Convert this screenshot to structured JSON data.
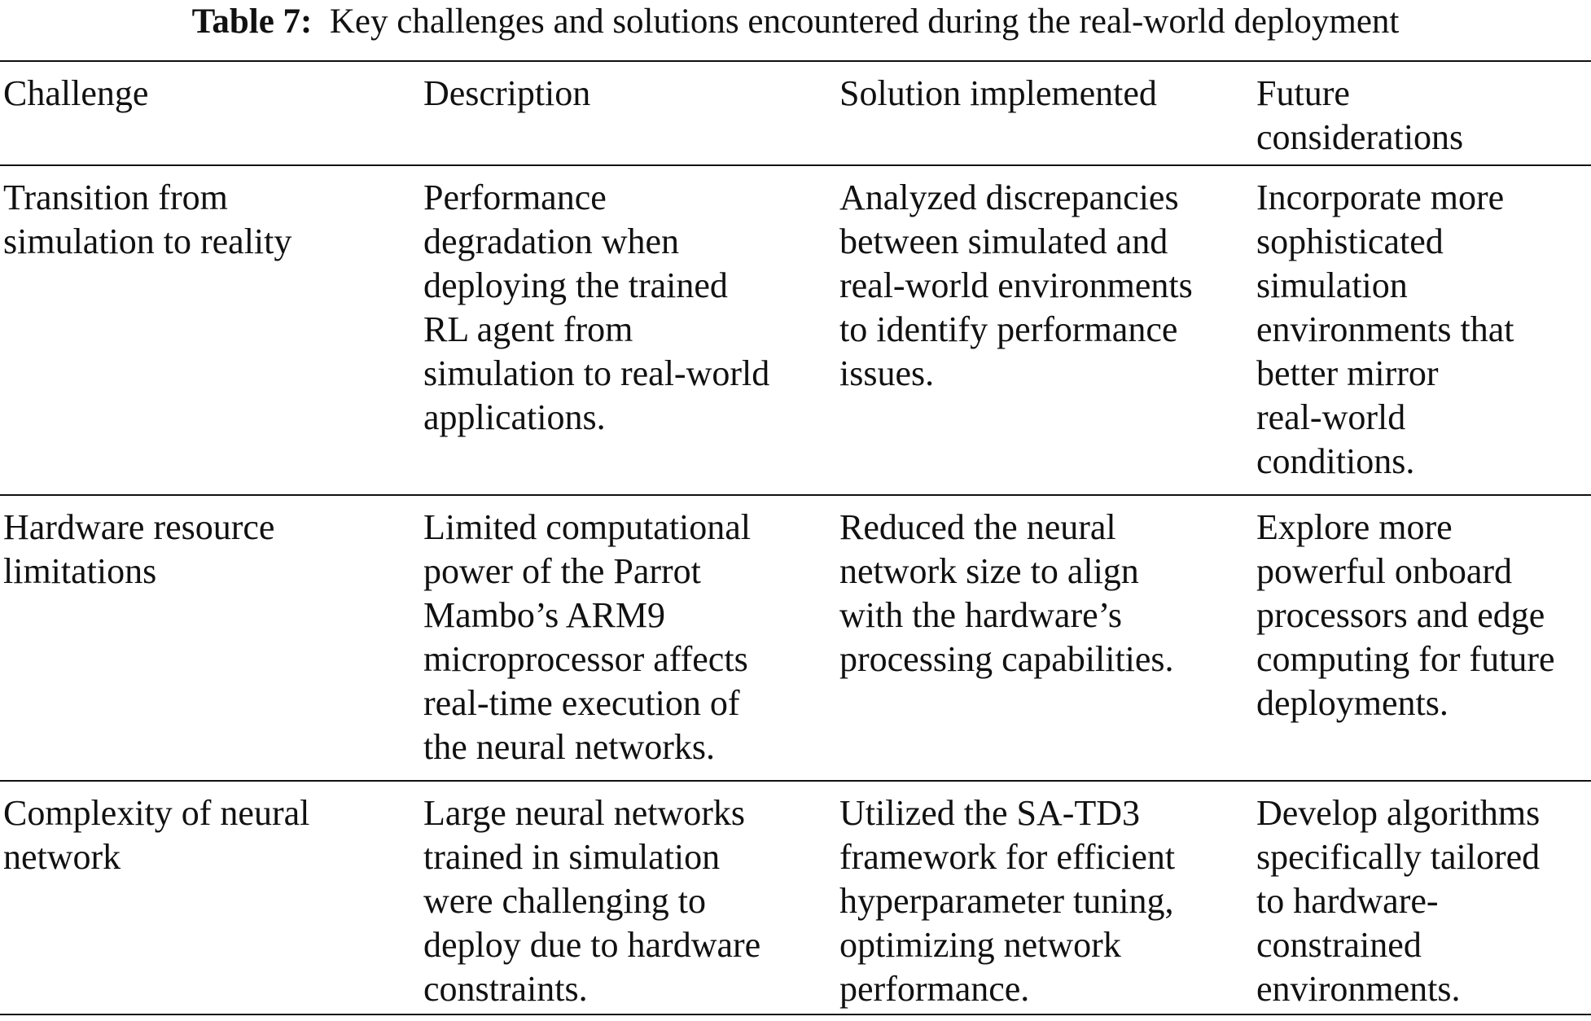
{
  "table": {
    "caption_label": "Table 7:",
    "caption_text": "Key challenges and solutions encountered during the real-world deployment",
    "headers": [
      [
        "Challenge"
      ],
      [
        "Description"
      ],
      [
        "Solution implemented"
      ],
      [
        "Future",
        "considerations"
      ]
    ],
    "rows": [
      [
        [
          "Transition from",
          "simulation to reality"
        ],
        [
          "Performance",
          "degradation when",
          "deploying the trained",
          "RL agent from",
          "simulation to real-world",
          "applications."
        ],
        [
          "Analyzed discrepancies",
          "between simulated and",
          "real-world environments",
          "to identify performance",
          "issues."
        ],
        [
          "Incorporate more",
          "sophisticated",
          "simulation",
          "environments that",
          "better mirror",
          "real-world",
          "conditions."
        ]
      ],
      [
        [
          "Hardware resource",
          "limitations"
        ],
        [
          "Limited computational",
          "power of the Parrot",
          "Mambo’s ARM9",
          "microprocessor affects",
          "real-time execution of",
          "the neural networks."
        ],
        [
          "Reduced the neural",
          "network size to align",
          "with the hardware’s",
          "processing capabilities."
        ],
        [
          "Explore more",
          "powerful onboard",
          "processors and edge",
          "computing for future",
          "deployments."
        ]
      ],
      [
        [
          "Complexity of neural",
          "network"
        ],
        [
          "Large neural networks",
          "trained in simulation",
          "were challenging to",
          "deploy due to hardware",
          "constraints."
        ],
        [
          "Utilized the SA-TD3",
          "framework for efficient",
          "hyperparameter tuning,",
          "optimizing network",
          "performance."
        ],
        [
          "Develop algorithms",
          "specifically tailored",
          "to hardware-",
          "constrained",
          "environments."
        ]
      ]
    ]
  }
}
